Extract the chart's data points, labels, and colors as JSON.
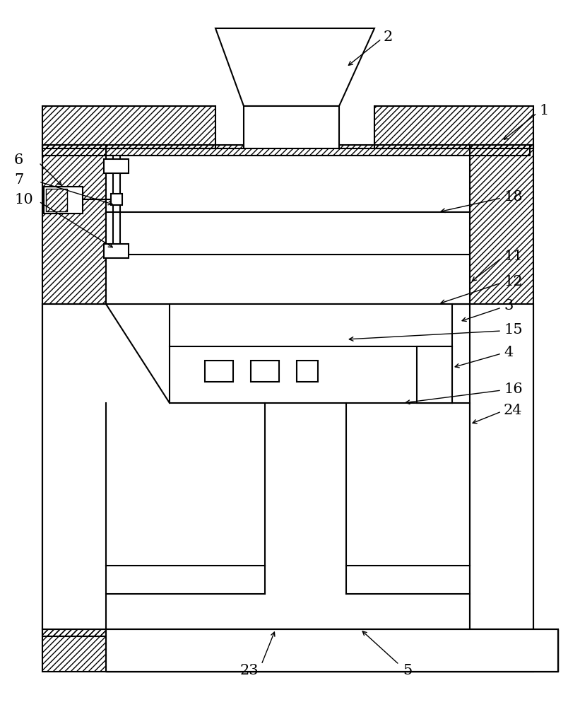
{
  "bg_color": "#ffffff",
  "lc": "#000000",
  "fig_w": 8.21,
  "fig_h": 10.0,
  "dpi": 100
}
